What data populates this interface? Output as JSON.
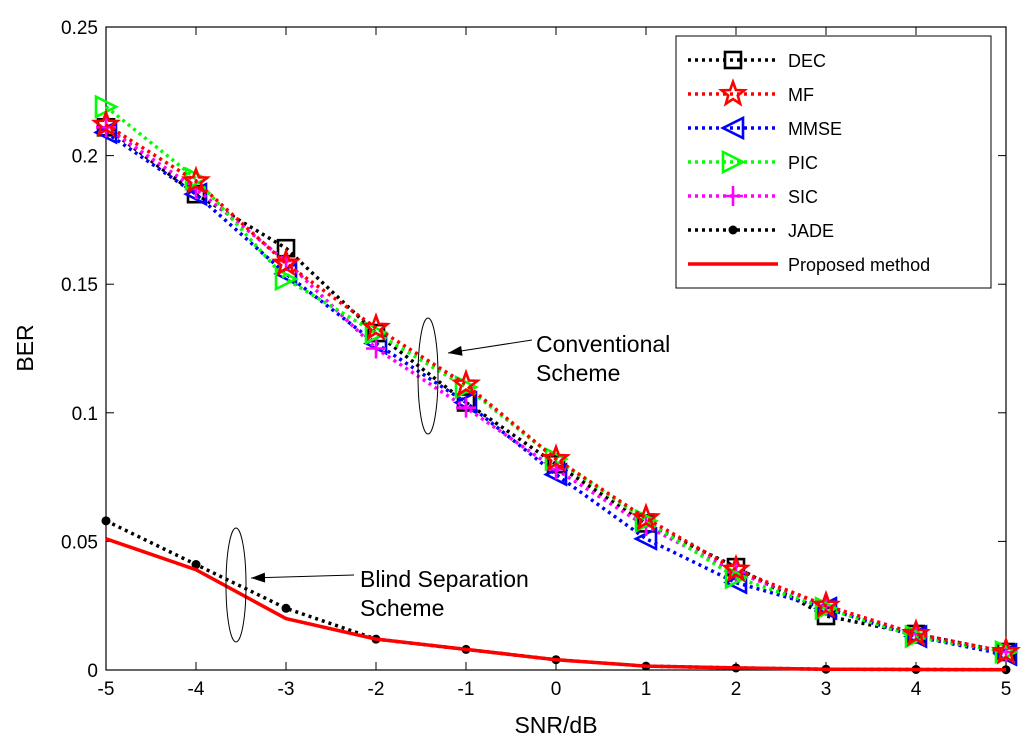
{
  "chart_data": {
    "type": "line",
    "title": "",
    "xlabel": "SNR/dB",
    "ylabel": "BER",
    "xlim": [
      -5,
      5
    ],
    "ylim": [
      0,
      0.25
    ],
    "x": [
      -5,
      -4,
      -3,
      -2,
      -1,
      0,
      1,
      2,
      3,
      4,
      5
    ],
    "xticks": [
      "-5",
      "-4",
      "-3",
      "-2",
      "-1",
      "0",
      "1",
      "2",
      "3",
      "4",
      "5"
    ],
    "yticks": [
      {
        "value": 0,
        "label": "0"
      },
      {
        "value": 0.05,
        "label": "0.05"
      },
      {
        "value": 0.1,
        "label": "0.1"
      },
      {
        "value": 0.15,
        "label": "0.15"
      },
      {
        "value": 0.2,
        "label": "0.2"
      },
      {
        "value": 0.25,
        "label": "0.25"
      }
    ],
    "grid": false,
    "legend_position": "top-right",
    "series": [
      {
        "name": "DEC",
        "color": "#000000",
        "style": "dotted",
        "marker": "square",
        "values": [
          0.211,
          0.185,
          0.164,
          0.131,
          0.104,
          0.08,
          0.057,
          0.04,
          0.021,
          0.014,
          0.007
        ]
      },
      {
        "name": "MF",
        "color": "#ff0000",
        "style": "dotted",
        "marker": "star",
        "values": [
          0.212,
          0.19,
          0.158,
          0.133,
          0.111,
          0.082,
          0.059,
          0.039,
          0.025,
          0.014,
          0.007
        ]
      },
      {
        "name": "MMSE",
        "color": "#0000ff",
        "style": "dotted",
        "marker": "triangle-left",
        "values": [
          0.209,
          0.185,
          0.154,
          0.127,
          0.104,
          0.076,
          0.051,
          0.034,
          0.024,
          0.013,
          0.006
        ]
      },
      {
        "name": "PIC",
        "color": "#00ff00",
        "style": "dotted",
        "marker": "triangle-right",
        "values": [
          0.219,
          0.191,
          0.152,
          0.131,
          0.11,
          0.082,
          0.058,
          0.036,
          0.024,
          0.013,
          0.007
        ]
      },
      {
        "name": "SIC",
        "color": "#ff00ff",
        "style": "dotted",
        "marker": "plus",
        "values": [
          0.211,
          0.187,
          0.159,
          0.125,
          0.102,
          0.078,
          0.056,
          0.038,
          0.025,
          0.014,
          0.007
        ]
      },
      {
        "name": "JADE",
        "color": "#000000",
        "style": "dotted",
        "marker": "dot",
        "values": [
          0.058,
          0.041,
          0.024,
          0.012,
          0.008,
          0.004,
          0.0015,
          0.0008,
          0.0003,
          0.0002,
          0.0001
        ]
      },
      {
        "name": "Proposed method",
        "color": "#ff0000",
        "style": "solid",
        "marker": "none",
        "values": [
          0.051,
          0.039,
          0.02,
          0.012,
          0.008,
          0.004,
          0.0015,
          0.0008,
          0.0003,
          0.0002,
          0.0001
        ]
      }
    ],
    "annotations": [
      {
        "id": "conventional",
        "lines": [
          "Conventional",
          "Scheme"
        ],
        "points_to": {
          "x": -1.3,
          "y": 0.12
        }
      },
      {
        "id": "blind",
        "lines": [
          "Blind Separation",
          "Scheme"
        ],
        "points_to": {
          "x": -3.5,
          "y": 0.034
        }
      }
    ]
  }
}
